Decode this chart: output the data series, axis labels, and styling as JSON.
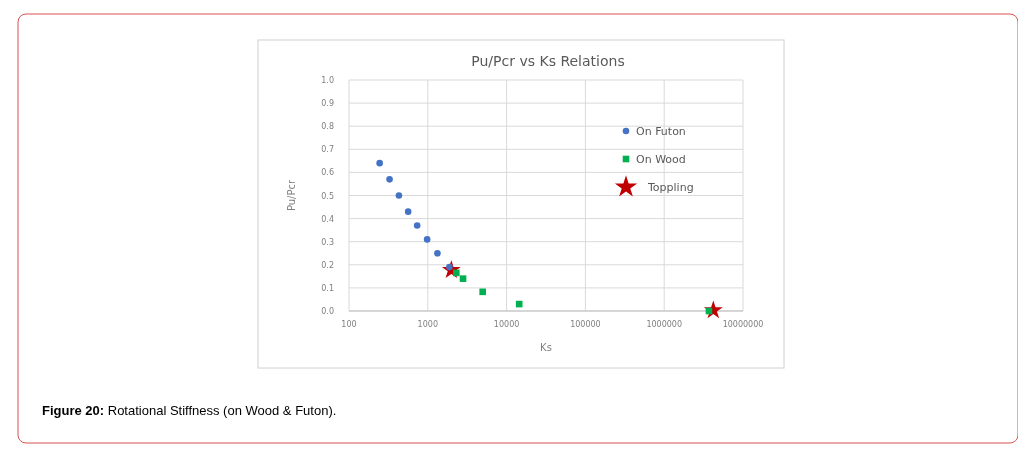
{
  "chart_data": {
    "type": "scatter",
    "title": "Pu/Pcr vs Ks Relations",
    "xlabel": "Ks",
    "ylabel": "Pu/Pcr",
    "log": "x",
    "grid": true,
    "legend": "right",
    "xlim": [
      100,
      10000000
    ],
    "xticks": [
      100,
      1000,
      10000,
      100000,
      1000000,
      10000000
    ],
    "ylim": [
      0,
      1
    ],
    "yticks": [
      {
        "value": 0,
        "label": "0.0"
      },
      {
        "value": 0.1,
        "label": "0.1"
      },
      {
        "value": 0.2,
        "label": "0.2"
      },
      {
        "value": 0.3,
        "label": "0.3"
      },
      {
        "value": 0.4,
        "label": "0.4"
      },
      {
        "value": 0.5,
        "label": "0.5"
      },
      {
        "value": 0.6,
        "label": "0.6"
      },
      {
        "value": 0.7,
        "label": "0.7"
      },
      {
        "value": 0.8,
        "label": "0.8"
      },
      {
        "value": 0.9,
        "label": "0.9"
      },
      {
        "value": 1,
        "label": "1.0"
      }
    ],
    "series": [
      {
        "name": "On Futon",
        "color": "#4472c4",
        "marker": "circle",
        "x": [
          245,
          327,
          430,
          563,
          733,
          981,
          1325,
          1880
        ],
        "values": [
          0.64,
          0.57,
          0.5,
          0.43,
          0.37,
          0.31,
          0.25,
          0.19
        ]
      },
      {
        "name": "On Wood",
        "color": "#00b050",
        "marker": "square",
        "x": [
          2300,
          2800,
          4970,
          14450,
          3700000
        ],
        "values": [
          0.165,
          0.14,
          0.083,
          0.03,
          0
        ]
      },
      {
        "name": "Toppling",
        "color": "#c00000",
        "marker": "star",
        "x": [
          1990,
          4200000
        ],
        "values": [
          0.177,
          0.003
        ]
      }
    ],
    "annotations": [
      "Figure 20: Rotational Stiffness (on Wood & Futon)."
    ]
  }
}
